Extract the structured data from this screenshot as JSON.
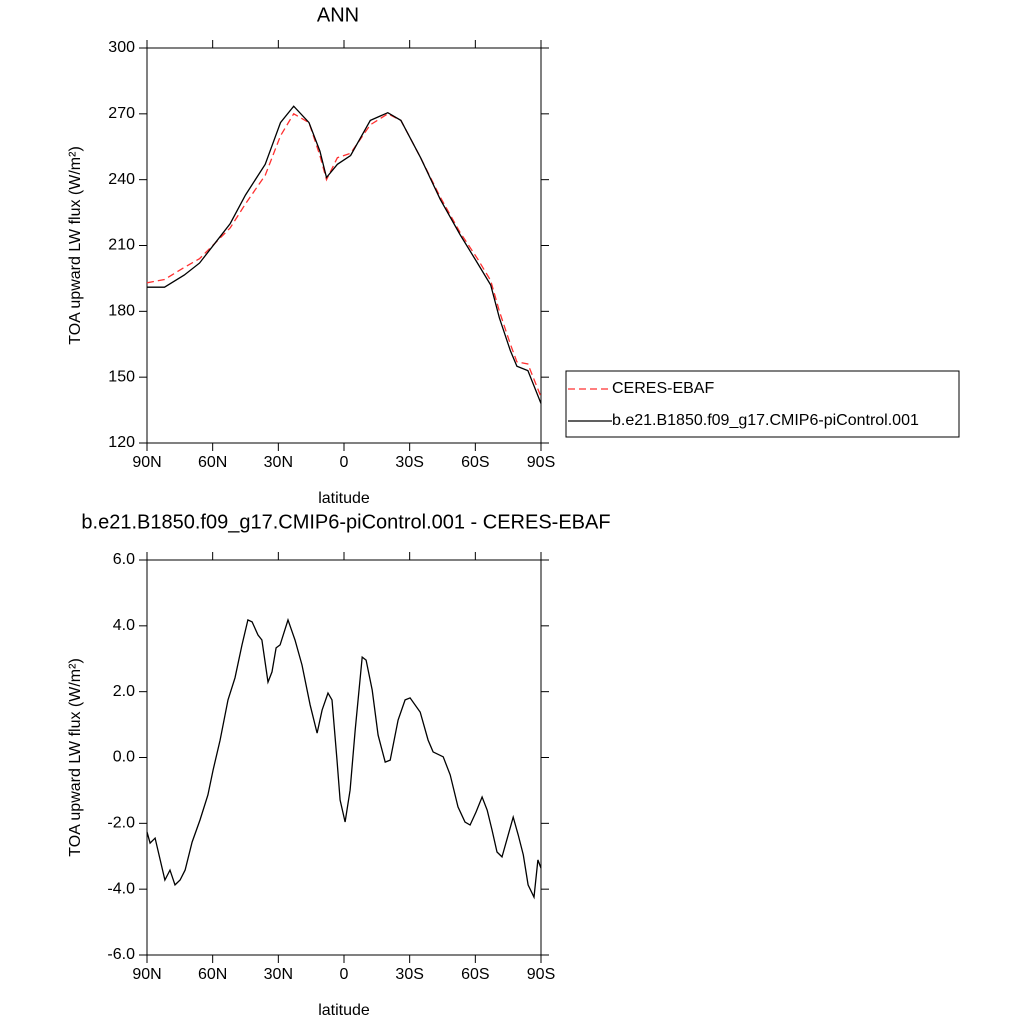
{
  "chart_data": [
    {
      "type": "line",
      "title": "ANN",
      "xlabel": "latitude",
      "ylabel": "TOA upward LW flux (W/m²)",
      "x": [
        90,
        82,
        73,
        66,
        59,
        52,
        45,
        36,
        29,
        23,
        16,
        11,
        8,
        3,
        -3,
        -12,
        -20,
        -26,
        -35,
        -44,
        -53,
        -61,
        -67,
        -71,
        -76,
        -79,
        -84,
        -90
      ],
      "series": [
        {
          "name": "CERES-EBAF",
          "color": "#ff3030",
          "linestyle": "dashed",
          "values": [
            193,
            194.5,
            200,
            204,
            211,
            218,
            229,
            242,
            260,
            270,
            266,
            251,
            240,
            250,
            252,
            265,
            270,
            267,
            250,
            232,
            216,
            204,
            194,
            180,
            165,
            157,
            156,
            141
          ]
        },
        {
          "name": "b.e21.B1850.f09_g17.CMIP6-piControl.001",
          "color": "#000000",
          "linestyle": "solid",
          "values": [
            191,
            191,
            196.5,
            202,
            211,
            220,
            233,
            247,
            266,
            273.5,
            266,
            253,
            241,
            247,
            251,
            267,
            270.5,
            267,
            250,
            231,
            215,
            202,
            192,
            177,
            162,
            155,
            153,
            138
          ]
        }
      ],
      "xlim": [
        90,
        -90
      ],
      "xticks": [
        {
          "value": 90,
          "label": "90N"
        },
        {
          "value": 60,
          "label": "60N"
        },
        {
          "value": 30,
          "label": "30N"
        },
        0,
        {
          "value": -30,
          "label": "30S"
        },
        {
          "value": -60,
          "label": "60S"
        },
        {
          "value": -90,
          "label": "90S"
        }
      ],
      "ylim": [
        120,
        300
      ],
      "yticks": [
        120,
        150,
        180,
        210,
        240,
        270,
        300
      ],
      "legend": "right"
    },
    {
      "type": "line",
      "title": "b.e21.B1850.f09_g17.CMIP6-piControl.001 - CERES-EBAF",
      "xlabel": "latitude",
      "ylabel": "TOA upward LW flux (W/m²)",
      "x": [
        90,
        88.6,
        86.3,
        81.8,
        79.5,
        77.2,
        74.9,
        72.6,
        69.4,
        65.8,
        62.2,
        59.8,
        56.6,
        53,
        49.8,
        46.6,
        43.9,
        42,
        39.3,
        37.5,
        34.7,
        32.9,
        31,
        29.2,
        25.6,
        22.4,
        19.2,
        15.5,
        12.3,
        10,
        7.3,
        5.5,
        3.2,
        1.8,
        -0.5,
        -2.8,
        -5.1,
        -8.3,
        -10.1,
        -12.9,
        -15.6,
        -18.8,
        -21.1,
        -24.7,
        -27.9,
        -30.2,
        -34.8,
        -38.4,
        -40.7,
        -45.3,
        -48.5,
        -52.1,
        -55.3,
        -57.6,
        -60.3,
        -63.1,
        -65.4,
        -67.6,
        -69.9,
        -72.2,
        -75,
        -77.3,
        -79.6,
        -81.9,
        -84.1,
        -86.8,
        -88.6,
        -90
      ],
      "series": [
        {
          "name": "b.e21.B1850.f09_g17.CMIP6-piControl.001 - CERES-EBAF",
          "color": "#000000",
          "linestyle": "solid",
          "values": [
            -2.26,
            -2.6,
            -2.45,
            -3.72,
            -3.42,
            -3.87,
            -3.72,
            -3.42,
            -2.57,
            -1.9,
            -1.14,
            -0.38,
            0.53,
            1.75,
            2.42,
            3.42,
            4.18,
            4.12,
            3.72,
            3.57,
            2.29,
            2.6,
            3.33,
            3.42,
            4.18,
            3.57,
            2.81,
            1.6,
            0.74,
            1.44,
            1.96,
            1.75,
            -0.08,
            -1.29,
            -1.96,
            -0.99,
            0.84,
            3.05,
            2.96,
            2.05,
            0.68,
            -0.14,
            -0.08,
            1.14,
            1.75,
            1.81,
            1.38,
            0.53,
            0.17,
            0.02,
            -0.53,
            -1.5,
            -1.96,
            -2.05,
            -1.66,
            -1.2,
            -1.6,
            -2.2,
            -2.87,
            -3.02,
            -2.35,
            -1.81,
            -2.35,
            -2.96,
            -3.87,
            -4.24,
            -3.11,
            -3.36
          ]
        }
      ],
      "xlim": [
        90,
        -90
      ],
      "xticks": [
        {
          "value": 90,
          "label": "90N"
        },
        {
          "value": 60,
          "label": "60N"
        },
        {
          "value": 30,
          "label": "30N"
        },
        0,
        {
          "value": -30,
          "label": "30S"
        },
        {
          "value": -60,
          "label": "60S"
        },
        {
          "value": -90,
          "label": "90S"
        }
      ],
      "ylim": [
        -6,
        6
      ],
      "yticks": [
        {
          "value": -6,
          "label": "-6.0"
        },
        {
          "value": -4,
          "label": "-4.0"
        },
        {
          "value": -2,
          "label": "-2.0"
        },
        {
          "value": 0,
          "label": "0.0"
        },
        {
          "value": 2,
          "label": "2.0"
        },
        {
          "value": 4,
          "label": "4.0"
        },
        {
          "value": 6,
          "label": "6.0"
        }
      ]
    }
  ]
}
